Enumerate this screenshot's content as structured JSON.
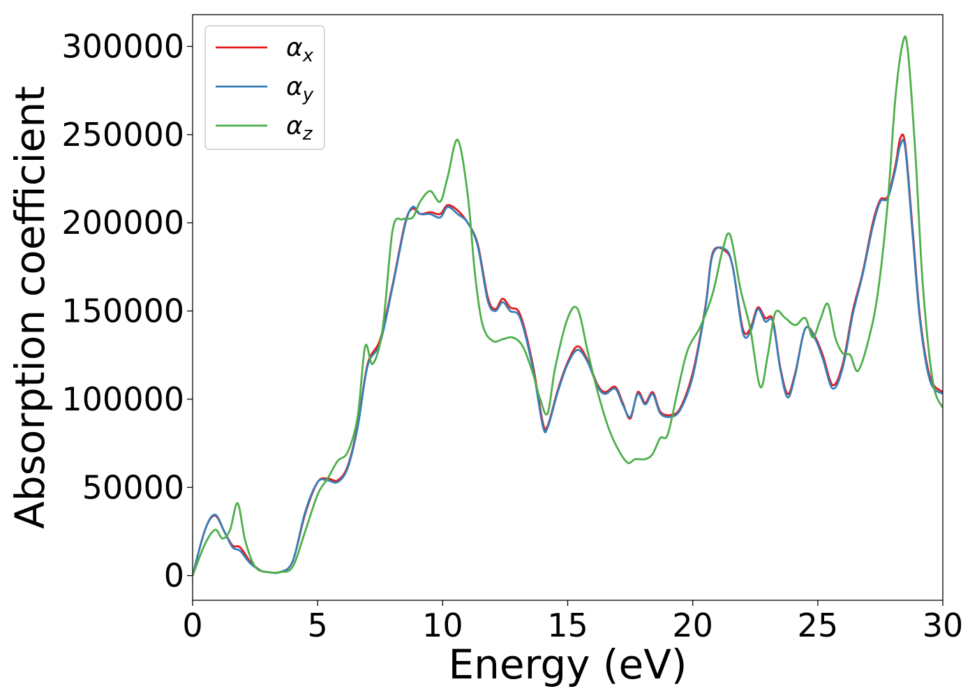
{
  "chart_data": {
    "type": "line",
    "title": "",
    "xlabel": "Energy (eV)",
    "ylabel": "Absorption coefficient",
    "xlim": [
      0,
      30
    ],
    "ylim": [
      -14000,
      318000
    ],
    "xticks": [
      0,
      5,
      10,
      15,
      20,
      25,
      30
    ],
    "xtick_labels": [
      "0",
      "5",
      "10",
      "15",
      "20",
      "25",
      "30"
    ],
    "yticks": [
      0,
      50000,
      100000,
      150000,
      200000,
      250000,
      300000
    ],
    "ytick_labels": [
      "0",
      "50000",
      "100000",
      "150000",
      "200000",
      "250000",
      "300000"
    ],
    "grid": false,
    "legend_position": "top-left",
    "series": [
      {
        "name": "α",
        "subscript": "x",
        "color": "#e41a1c",
        "x": [
          0,
          0.5,
          0.9,
          1.3,
          1.6,
          1.9,
          2.3,
          2.7,
          3.0,
          3.5,
          4.0,
          4.5,
          5.0,
          5.4,
          5.8,
          6.2,
          6.6,
          7.0,
          7.5,
          8.0,
          8.5,
          8.8,
          9.1,
          9.5,
          9.9,
          10.2,
          10.6,
          11.0,
          11.4,
          11.8,
          12.1,
          12.4,
          12.7,
          13.1,
          13.6,
          14.0,
          14.2,
          14.6,
          15.0,
          15.4,
          15.8,
          16.2,
          16.5,
          16.9,
          17.2,
          17.5,
          17.8,
          18.1,
          18.4,
          18.7,
          19.1,
          19.5,
          20.0,
          20.5,
          20.8,
          21.3,
          21.6,
          22.0,
          22.3,
          22.6,
          22.9,
          23.2,
          23.5,
          23.8,
          24.1,
          24.5,
          24.9,
          25.2,
          25.6,
          26.0,
          26.4,
          26.8,
          27.2,
          27.5,
          27.8,
          28.1,
          28.3,
          28.5,
          28.8,
          29.1,
          29.5,
          30.0
        ],
        "y": [
          0,
          26000,
          34000,
          24000,
          17000,
          16000,
          8000,
          3000,
          2000,
          2000,
          8000,
          35000,
          53000,
          55000,
          54000,
          62000,
          85000,
          120000,
          134000,
          165000,
          200000,
          208000,
          205000,
          206000,
          205000,
          210000,
          207000,
          200000,
          188000,
          158000,
          151000,
          157000,
          152000,
          148000,
          120000,
          87000,
          85000,
          105000,
          121000,
          130000,
          122000,
          108000,
          104000,
          107000,
          98000,
          89000,
          104000,
          98000,
          104000,
          93000,
          91000,
          95000,
          115000,
          152000,
          183000,
          184000,
          175000,
          140000,
          140000,
          152000,
          146000,
          145000,
          118000,
          103000,
          115000,
          140000,
          135000,
          125000,
          108000,
          120000,
          150000,
          172000,
          200000,
          213000,
          215000,
          232000,
          248000,
          244000,
          195000,
          145000,
          112000,
          104000
        ]
      },
      {
        "name": "α",
        "subscript": "y",
        "color": "#377eb8",
        "x": [
          0,
          0.5,
          0.9,
          1.3,
          1.6,
          1.9,
          2.3,
          2.7,
          3.0,
          3.5,
          4.0,
          4.5,
          5.0,
          5.4,
          5.8,
          6.2,
          6.6,
          7.0,
          7.5,
          8.0,
          8.5,
          8.8,
          9.1,
          9.5,
          9.9,
          10.2,
          10.6,
          11.0,
          11.4,
          11.8,
          12.1,
          12.4,
          12.7,
          13.1,
          13.6,
          14.0,
          14.2,
          14.6,
          15.0,
          15.4,
          15.8,
          16.2,
          16.5,
          16.9,
          17.2,
          17.5,
          17.8,
          18.1,
          18.4,
          18.7,
          19.1,
          19.5,
          20.0,
          20.5,
          20.8,
          21.3,
          21.6,
          22.0,
          22.3,
          22.6,
          22.9,
          23.2,
          23.5,
          23.8,
          24.1,
          24.5,
          24.9,
          25.2,
          25.6,
          26.0,
          26.4,
          26.8,
          27.2,
          27.5,
          27.8,
          28.1,
          28.3,
          28.5,
          28.8,
          29.1,
          29.5,
          30.0
        ],
        "y": [
          0,
          26000,
          34500,
          24000,
          16000,
          14000,
          7000,
          3000,
          2000,
          2000,
          8000,
          36000,
          53000,
          54000,
          53000,
          61000,
          84000,
          119000,
          132000,
          164000,
          199000,
          209000,
          205000,
          205000,
          203000,
          209000,
          205000,
          200000,
          187000,
          156000,
          150000,
          155000,
          150000,
          146000,
          118000,
          85000,
          84000,
          104000,
          120000,
          128000,
          121000,
          107000,
          103000,
          106000,
          97000,
          90000,
          103000,
          97000,
          103000,
          92000,
          90000,
          94000,
          113000,
          151000,
          182000,
          185000,
          175000,
          138000,
          138000,
          151000,
          144000,
          144000,
          117000,
          101000,
          114000,
          140000,
          134000,
          123000,
          106000,
          118000,
          148000,
          171000,
          198000,
          212000,
          214000,
          230000,
          244000,
          242000,
          192000,
          143000,
          110000,
          103000
        ]
      },
      {
        "name": "α",
        "subscript": "z",
        "color": "#4daf4a",
        "x": [
          0,
          0.5,
          0.9,
          1.2,
          1.5,
          1.8,
          2.1,
          2.5,
          3.0,
          3.5,
          4.0,
          4.5,
          5.0,
          5.4,
          5.8,
          6.2,
          6.6,
          6.9,
          7.2,
          7.6,
          8.0,
          8.4,
          8.8,
          9.1,
          9.5,
          9.9,
          10.2,
          10.6,
          11.0,
          11.3,
          11.6,
          12.0,
          12.4,
          12.8,
          13.2,
          13.6,
          13.9,
          14.2,
          14.5,
          15.0,
          15.4,
          15.8,
          16.2,
          16.6,
          17.0,
          17.4,
          17.7,
          18.1,
          18.4,
          18.7,
          19.0,
          19.4,
          19.8,
          20.3,
          20.8,
          21.2,
          21.5,
          21.9,
          22.3,
          22.7,
          23.0,
          23.3,
          23.7,
          24.1,
          24.5,
          24.8,
          25.1,
          25.4,
          25.7,
          26.0,
          26.3,
          26.6,
          27.0,
          27.4,
          27.8,
          28.1,
          28.4,
          28.6,
          28.9,
          29.2,
          29.6,
          30.0
        ],
        "y": [
          0,
          18000,
          26000,
          21000,
          26000,
          41000,
          20000,
          5000,
          2000,
          2000,
          5000,
          25000,
          46000,
          55000,
          65000,
          70000,
          90000,
          130000,
          120000,
          140000,
          196000,
          202000,
          203000,
          212000,
          218000,
          212000,
          226000,
          247000,
          216000,
          170000,
          142000,
          133000,
          134000,
          135000,
          130000,
          115000,
          100000,
          92000,
          118000,
          146000,
          151000,
          127000,
          104000,
          85000,
          72000,
          64000,
          66000,
          66000,
          69000,
          78000,
          80000,
          105000,
          128000,
          141000,
          160000,
          185000,
          193000,
          163000,
          140000,
          107000,
          125000,
          149000,
          146000,
          142000,
          146000,
          135000,
          145000,
          154000,
          135000,
          126000,
          125000,
          116000,
          132000,
          160000,
          212000,
          270000,
          302000,
          298000,
          240000,
          165000,
          110000,
          95000
        ]
      }
    ]
  }
}
